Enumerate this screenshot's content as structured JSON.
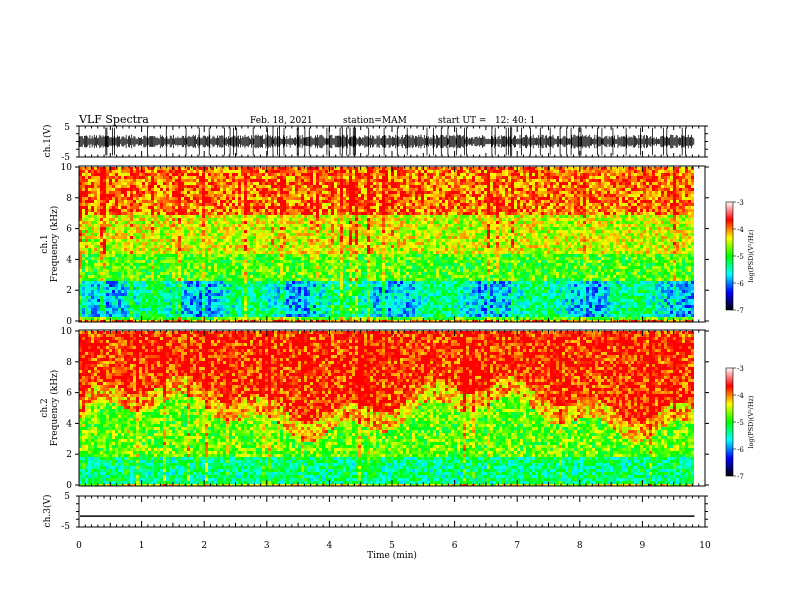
{
  "header": {
    "title": "VLF Spectra",
    "date": "Feb. 18, 2021",
    "station": "station=MAM",
    "start": "start UT =   12: 40: 1"
  },
  "colorbar": {
    "label": "log(PSD)(V²/Hz)",
    "ticks": [
      "-3",
      "-4",
      "-5",
      "-6",
      "-7"
    ],
    "stops": [
      "#ffffff",
      "#ff0000",
      "#ffff00",
      "#00ff00",
      "#00ffff",
      "#0000ff",
      "#000000"
    ]
  },
  "chart_data": [
    {
      "type": "line",
      "name": "ch1-waveform",
      "ylabel": "ch.1(V)",
      "ylim": [
        -5,
        5
      ],
      "yticks": [
        "5",
        "-5"
      ],
      "xlim": [
        0,
        10
      ],
      "description_series": "dense impulsive waveform across full window",
      "series": [
        {
          "x": [
            0,
            9.83
          ],
          "y": [
            0,
            0
          ]
        }
      ]
    },
    {
      "type": "heatmap",
      "name": "ch1-spectrogram",
      "ylabel": "ch.1\nFrequency (kHz)",
      "ylim": [
        0,
        10
      ],
      "yticks": [
        "0",
        "2",
        "4",
        "6",
        "8",
        "10"
      ],
      "xlim": [
        0,
        10
      ],
      "data_end_min": 9.83,
      "clim": [
        -7,
        -3
      ]
    },
    {
      "type": "heatmap",
      "name": "ch2-spectrogram",
      "ylabel": "ch.2\nFrequency (kHz)",
      "ylim": [
        0,
        10
      ],
      "yticks": [
        "0",
        "2",
        "4",
        "6",
        "8",
        "10"
      ],
      "xlim": [
        0,
        10
      ],
      "data_end_min": 9.83,
      "clim": [
        -7,
        -3
      ]
    },
    {
      "type": "line",
      "name": "ch3-waveform",
      "ylabel": "ch.3(V)",
      "ylim": [
        -5,
        5
      ],
      "yticks": [
        "5",
        "-5"
      ],
      "xlim": [
        0,
        10
      ],
      "series": [
        {
          "x": [
            0,
            9.83
          ],
          "y": [
            -1.6,
            -1.6
          ]
        }
      ]
    }
  ],
  "xaxis": {
    "label": "Time (min)",
    "ticks": [
      "0",
      "1",
      "2",
      "3",
      "4",
      "5",
      "6",
      "7",
      "8",
      "9",
      "10"
    ]
  }
}
